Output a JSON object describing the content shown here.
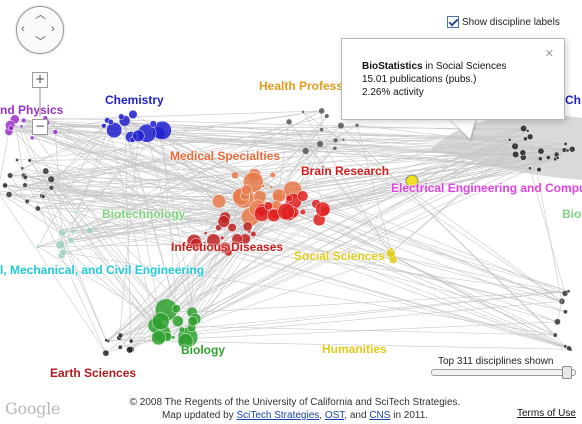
{
  "map": {
    "labels": [
      {
        "text": "Chemistry",
        "color": "#2020c8"
      },
      {
        "text": "Health Profess",
        "color": "#e59a1a"
      },
      {
        "text": "Medical Specialties",
        "color": "#e86a3a"
      },
      {
        "text": "Brain Research",
        "color": "#d41a1a"
      },
      {
        "text": "Biotechnology",
        "color": "#7fd47f"
      },
      {
        "text": "Infectious Diseases",
        "color": "#c81a1a"
      },
      {
        "text": "Social Sciences",
        "color": "#e0cc1a"
      },
      {
        "text": "Electrical Engineering and Compu",
        "color": "#e040e0"
      },
      {
        "text": "l, Mechanical, and Civil Engineering",
        "color": "#20c8d8"
      },
      {
        "text": "Biology",
        "color": "#2ea02e"
      },
      {
        "text": "Humanities",
        "color": "#e0cc1a"
      },
      {
        "text": "Earth Sciences",
        "color": "#b01a1a"
      },
      {
        "text": "nd Physics",
        "color": "#9b30c8"
      },
      {
        "text": "Bio",
        "color": "#7fd47f"
      },
      {
        "text": "Ch",
        "color": "#2020c8"
      }
    ]
  },
  "controls": {
    "pan_icon": "pan-arrows-icon",
    "zoom_in": "+",
    "zoom_out": "−"
  },
  "toggle": {
    "label": "Show discipline labels",
    "checked": true
  },
  "infowindow": {
    "title_bold": "BioStatistics",
    "title_rest": " in Social Sciences",
    "line2": "15.01 publications (pubs.)",
    "line3": "2.26% activity",
    "close": "✕"
  },
  "slider": {
    "label": "Top 311 disciplines shown",
    "fraction": 0.98
  },
  "footer": {
    "google_logo": "Google",
    "line1": "© 2008 The Regents of the University of California and SciTech Strategies.",
    "line2_prefix": "Map updated by ",
    "link1": "SciTech Strategies",
    "sep1": ", ",
    "link2": "OST",
    "sep2": ", and ",
    "link3": "CNS",
    "line2_suffix": " in 2011.",
    "terms": "Terms of Use"
  }
}
